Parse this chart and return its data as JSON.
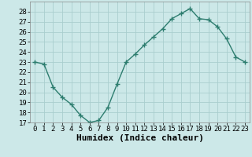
{
  "x": [
    0,
    1,
    2,
    3,
    4,
    5,
    6,
    7,
    8,
    9,
    10,
    11,
    12,
    13,
    14,
    15,
    16,
    17,
    18,
    19,
    20,
    21,
    22,
    23
  ],
  "y": [
    23,
    22.8,
    20.5,
    19.5,
    18.8,
    17.7,
    17.0,
    17.2,
    18.5,
    20.8,
    23.0,
    23.8,
    24.7,
    25.5,
    26.3,
    27.3,
    27.8,
    28.3,
    27.3,
    27.2,
    26.5,
    25.3,
    23.5,
    23.0
  ],
  "xlabel": "Humidex (Indice chaleur)",
  "line_color": "#2d7d6f",
  "marker": "+",
  "bg_color": "#cce8e8",
  "grid_color": "#aacece",
  "ylim": [
    17,
    29
  ],
  "xlim": [
    -0.5,
    23.5
  ],
  "yticks": [
    17,
    18,
    19,
    20,
    21,
    22,
    23,
    24,
    25,
    26,
    27,
    28
  ],
  "xticks": [
    0,
    1,
    2,
    3,
    4,
    5,
    6,
    7,
    8,
    9,
    10,
    11,
    12,
    13,
    14,
    15,
    16,
    17,
    18,
    19,
    20,
    21,
    22,
    23
  ],
  "tick_fontsize": 6.5,
  "xlabel_fontsize": 8
}
